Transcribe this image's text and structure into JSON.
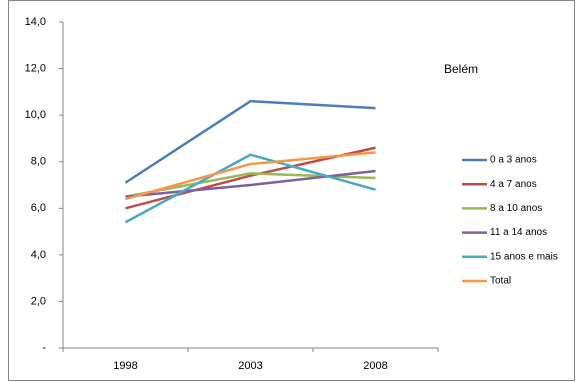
{
  "chart_data": {
    "type": "line",
    "annotation": "Belém",
    "categories": [
      "1998",
      "2003",
      "2008"
    ],
    "series": [
      {
        "name": "0 a 3 anos",
        "color": "#4a7ebb",
        "values": [
          7.1,
          10.6,
          10.3
        ]
      },
      {
        "name": "4 a 7 anos",
        "color": "#be4b48",
        "values": [
          6.0,
          7.4,
          8.6
        ]
      },
      {
        "name": "8 a 10 anos",
        "color": "#98b954",
        "values": [
          6.5,
          7.5,
          7.3
        ]
      },
      {
        "name": "11 a 14 anos",
        "color": "#7d60a0",
        "values": [
          6.5,
          7.0,
          7.6
        ]
      },
      {
        "name": "15 anos e mais",
        "color": "#46aac5",
        "values": [
          5.4,
          8.3,
          6.8
        ]
      },
      {
        "name": "Total",
        "color": "#f79646",
        "values": [
          6.4,
          7.9,
          8.4
        ]
      }
    ],
    "ylim": [
      0,
      14
    ],
    "yticks": [
      {
        "value": 0,
        "label": "-"
      },
      {
        "value": 2,
        "label": "2,0"
      },
      {
        "value": 4,
        "label": "4,0"
      },
      {
        "value": 6,
        "label": "6,0"
      },
      {
        "value": 8,
        "label": "8,0"
      },
      {
        "value": 10,
        "label": "10,0"
      },
      {
        "value": 12,
        "label": "12,0"
      },
      {
        "value": 14,
        "label": "14,0"
      }
    ],
    "grid": false,
    "legend": "right"
  }
}
